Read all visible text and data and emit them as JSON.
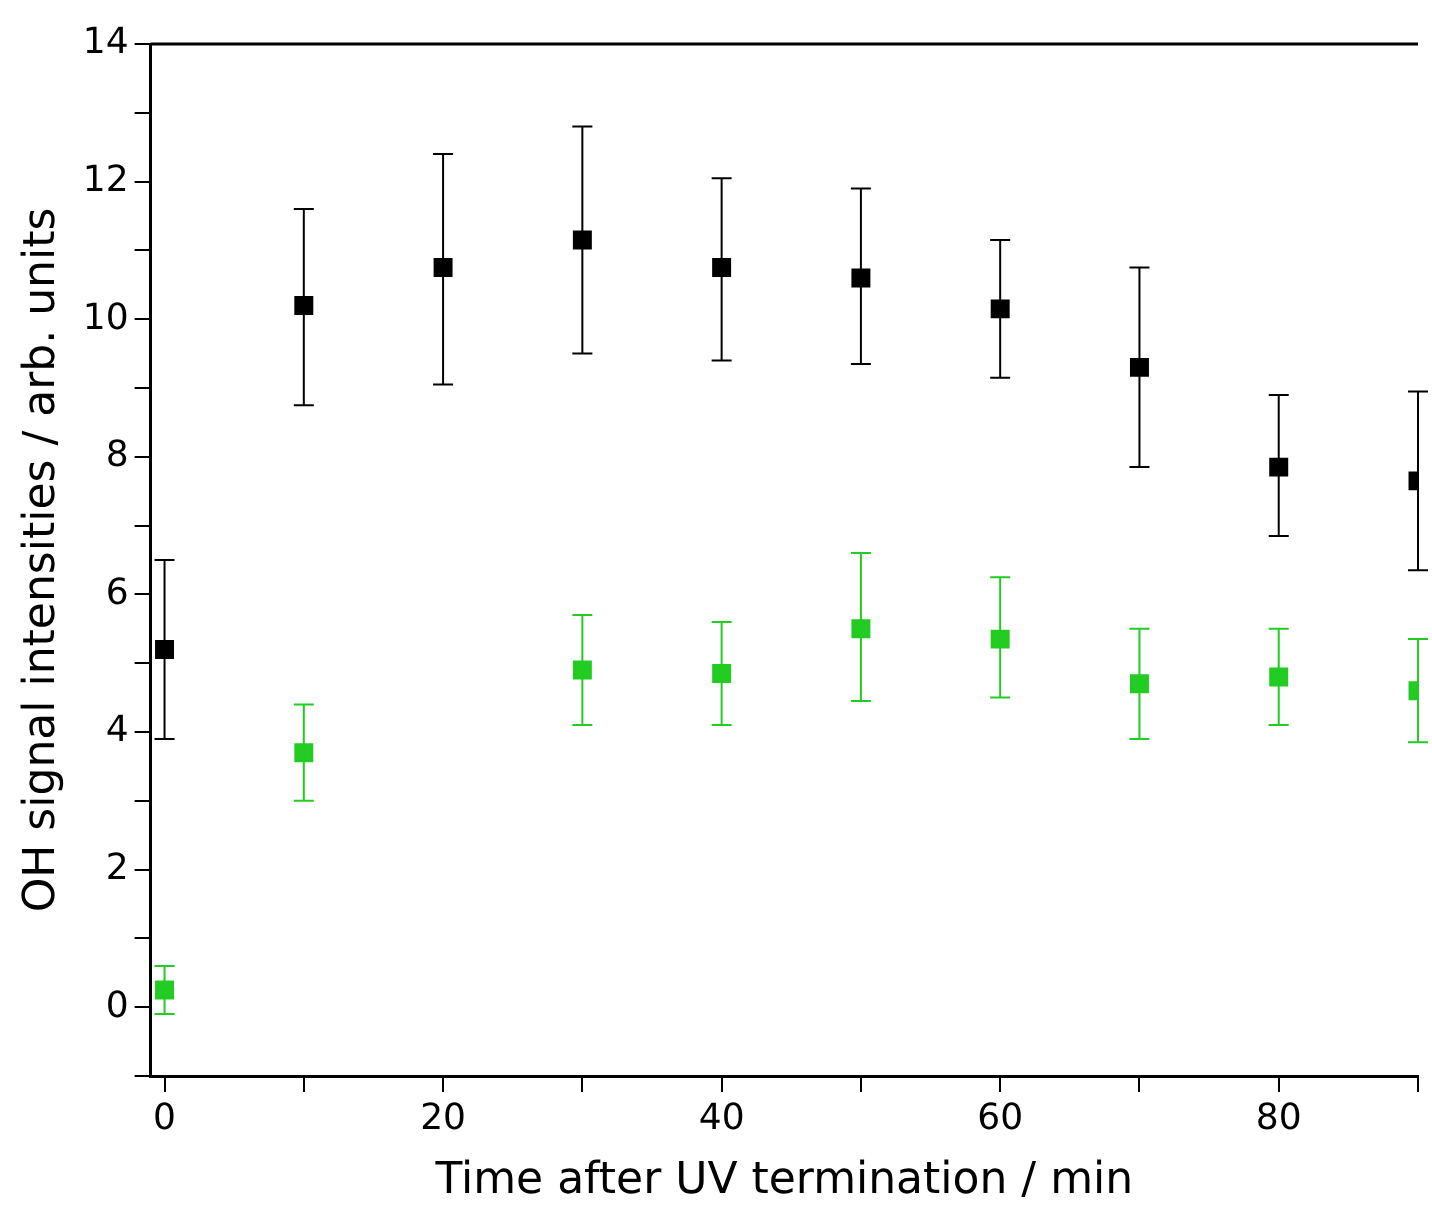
{
  "chart_data": {
    "type": "scatter",
    "xlabel": "Time after UV termination / min",
    "ylabel": "OH signal intensities / arb. units",
    "x": [
      0,
      10,
      20,
      30,
      40,
      50,
      60,
      70,
      80,
      90
    ],
    "series": [
      {
        "color": "#000000",
        "values": [
          5.2,
          10.2,
          10.75,
          11.15,
          10.75,
          10.6,
          10.15,
          9.3,
          7.85,
          7.65
        ],
        "errors": [
          [
            3.9,
            6.5
          ],
          [
            8.75,
            11.6
          ],
          [
            9.05,
            12.4
          ],
          [
            9.5,
            12.8
          ],
          [
            9.4,
            12.05
          ],
          [
            9.35,
            11.9
          ],
          [
            9.15,
            11.15
          ],
          [
            7.85,
            10.75
          ],
          [
            6.85,
            8.9
          ],
          [
            6.35,
            8.95
          ]
        ]
      },
      {
        "color": "#22cc22",
        "values": [
          0.25,
          3.7,
          null,
          4.9,
          4.85,
          5.5,
          5.35,
          4.7,
          4.8,
          4.6
        ],
        "errors": [
          [
            -0.1,
            0.6
          ],
          [
            3.0,
            4.4
          ],
          null,
          [
            4.1,
            5.7
          ],
          [
            4.1,
            5.6
          ],
          [
            4.45,
            6.6
          ],
          [
            4.5,
            6.25
          ],
          [
            3.9,
            5.5
          ],
          [
            4.1,
            5.5
          ],
          [
            3.85,
            5.35
          ]
        ]
      }
    ],
    "xlim": [
      -1,
      90
    ],
    "xticks": [
      0,
      {
        "value": 10,
        "label": null
      },
      20,
      {
        "value": 30,
        "label": null
      },
      40,
      {
        "value": 50,
        "label": null
      },
      60,
      {
        "value": 70,
        "label": null
      },
      80,
      {
        "value": 90,
        "label": null
      }
    ],
    "ylim": [
      -1,
      14
    ],
    "yticks": [
      {
        "value": -1,
        "label": null
      },
      0,
      {
        "value": 1,
        "label": null
      },
      2,
      {
        "value": 3,
        "label": null
      },
      4,
      {
        "value": 5,
        "label": null
      },
      6,
      {
        "value": 7,
        "label": null
      },
      8,
      {
        "value": 9,
        "label": null
      },
      10,
      {
        "value": 11,
        "label": null
      },
      12,
      {
        "value": 13,
        "label": null
      },
      14
    ],
    "marker": "square",
    "grid": false,
    "legend": false
  }
}
